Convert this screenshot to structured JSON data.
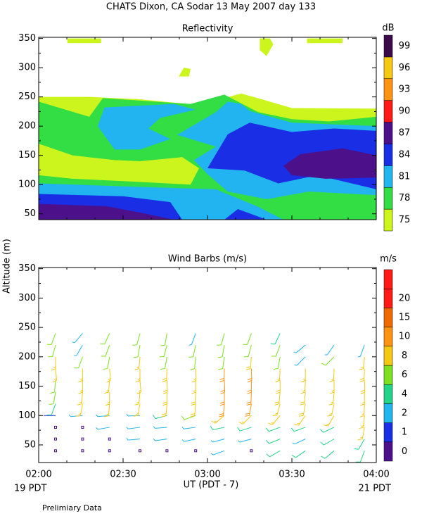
{
  "page_title": "CHATS Dixon, CA  Sodar  13 May 2007  day 133",
  "y_label": "Altitude (m)",
  "x_note_left": "19 PDT",
  "x_note_right": "21 PDT",
  "footer": "Prelimiary Data",
  "chart_data": [
    {
      "type": "contour",
      "title": "Reflectivity",
      "xlim": [
        2,
        4
      ],
      "ylim": [
        40,
        352
      ],
      "yticks": [
        50,
        100,
        150,
        200,
        250,
        300,
        350
      ],
      "colorbar_label": "dB",
      "levels": [
        75,
        78,
        81,
        84,
        87,
        90,
        93,
        96,
        99
      ],
      "colors": [
        "#ccf51e",
        "#33dd44",
        "#22b4f0",
        "#1a2ee6",
        "#4b108a",
        "#ff1a1a",
        "#ff9414",
        "#f5c814",
        "#3a0a4a"
      ],
      "regions": [
        {
          "level": 75,
          "points": [
            [
              2,
              40
            ],
            [
              2,
              250
            ],
            [
              2.3,
              250
            ],
            [
              2.6,
              246
            ],
            [
              2.95,
              236
            ],
            [
              3.2,
              256
            ],
            [
              3.5,
              231
            ],
            [
              4,
              230
            ],
            [
              4,
              40
            ]
          ]
        },
        {
          "level": 75,
          "points": [
            [
              2.17,
              342
            ],
            [
              2.37,
              342
            ],
            [
              2.37,
              350
            ],
            [
              2.17,
              350
            ]
          ]
        },
        {
          "level": 75,
          "points": [
            [
              2.83,
              285
            ],
            [
              2.86,
              300
            ],
            [
              2.9,
              298
            ],
            [
              2.89,
              285
            ]
          ]
        },
        {
          "level": 75,
          "points": [
            [
              3.31,
              330
            ],
            [
              3.35,
              320
            ],
            [
              3.39,
              340
            ],
            [
              3.37,
              350
            ],
            [
              3.31,
              350
            ]
          ]
        },
        {
          "level": 75,
          "points": [
            [
              3.59,
              342
            ],
            [
              3.8,
              342
            ],
            [
              3.8,
              350
            ],
            [
              3.59,
              350
            ]
          ]
        },
        {
          "level": 78,
          "points": [
            [
              2,
              40
            ],
            [
              2,
              242
            ],
            [
              2.3,
              216
            ],
            [
              2.38,
              248
            ],
            [
              2.9,
              238
            ],
            [
              3.1,
              254
            ],
            [
              3.3,
              224
            ],
            [
              3.5,
              212
            ],
            [
              3.72,
              208
            ],
            [
              4,
              216
            ],
            [
              4,
              40
            ]
          ]
        },
        {
          "level": 75,
          "points": [
            [
              2,
              170
            ],
            [
              2.2,
              150
            ],
            [
              2.45,
              142
            ],
            [
              2.6,
              140
            ],
            [
              2.85,
              147
            ],
            [
              2.95,
              128
            ],
            [
              2.9,
              100
            ],
            [
              2.5,
              106
            ],
            [
              2.2,
              110
            ],
            [
              2,
              116
            ]
          ]
        },
        {
          "level": 81,
          "points": [
            [
              2.35,
              200
            ],
            [
              2.39,
              232
            ],
            [
              2.8,
              238
            ],
            [
              2.93,
              228
            ],
            [
              2.72,
              214
            ],
            [
              2.65,
              196
            ],
            [
              2.78,
              178
            ],
            [
              2.6,
              160
            ],
            [
              2.45,
              160
            ]
          ]
        },
        {
          "level": 81,
          "points": [
            [
              2.82,
              185
            ],
            [
              3.05,
              224
            ],
            [
              3.12,
              242
            ],
            [
              3.2,
              238
            ],
            [
              3.25,
              226
            ],
            [
              3.5,
              206
            ],
            [
              4,
              200
            ],
            [
              4,
              82
            ],
            [
              3.6,
              88
            ],
            [
              3.35,
              75
            ],
            [
              3.12,
              88
            ],
            [
              3.0,
              118
            ],
            [
              2.92,
              142
            ],
            [
              3.05,
              165
            ]
          ]
        },
        {
          "level": 81,
          "points": [
            [
              2,
              102
            ],
            [
              2.6,
              96
            ],
            [
              3.05,
              92
            ],
            [
              3.3,
              62
            ],
            [
              3.45,
              40
            ],
            [
              2,
              40
            ]
          ]
        },
        {
          "level": 84,
          "points": [
            [
              3.0,
              128
            ],
            [
              3.12,
              186
            ],
            [
              3.25,
              206
            ],
            [
              3.5,
              190
            ],
            [
              3.75,
              196
            ],
            [
              4,
              192
            ],
            [
              4,
              92
            ],
            [
              3.65,
              116
            ],
            [
              3.42,
              102
            ],
            [
              3.22,
              124
            ]
          ]
        },
        {
          "level": 84,
          "points": [
            [
              2,
              84
            ],
            [
              2.5,
              80
            ],
            [
              2.78,
              70
            ],
            [
              2.85,
              40
            ],
            [
              2,
              40
            ]
          ]
        },
        {
          "level": 84,
          "points": [
            [
              3.1,
              40
            ],
            [
              3.18,
              58
            ],
            [
              3.35,
              40
            ]
          ]
        },
        {
          "level": 87,
          "points": [
            [
              3.45,
              132
            ],
            [
              3.55,
              152
            ],
            [
              3.8,
              162
            ],
            [
              4,
              150
            ],
            [
              4,
              112
            ],
            [
              3.7,
              110
            ],
            [
              3.5,
              116
            ]
          ]
        },
        {
          "level": 87,
          "points": [
            [
              2,
              67
            ],
            [
              2.4,
              63
            ],
            [
              2.6,
              52
            ],
            [
              2.8,
              40
            ],
            [
              2,
              40
            ]
          ]
        }
      ]
    },
    {
      "type": "barbs",
      "title": "Wind Barbs (m/s)",
      "xlim": [
        2,
        4
      ],
      "ylim": [
        20,
        352
      ],
      "xticks": [
        {
          "value": 2,
          "label": "02:00"
        },
        {
          "value": 2.5,
          "label": "02:30"
        },
        {
          "value": 3,
          "label": "03:00"
        },
        {
          "value": 3.5,
          "label": "03:30"
        },
        {
          "value": 4,
          "label": "04:00"
        }
      ],
      "yticks": [
        50,
        100,
        150,
        200,
        250,
        300,
        350
      ],
      "x_label": "UT  (PDT - 7)",
      "colorbar_label": "m/s",
      "levels": [
        0,
        1,
        2,
        4,
        6,
        8,
        10,
        15,
        20
      ],
      "colors": [
        "#4b108a",
        "#1a2ee6",
        "#22b4f0",
        "#22d488",
        "#7ee022",
        "#f5c814",
        "#ff9414",
        "#f06a00",
        "#ff1a1a"
      ],
      "altitudes": [
        40,
        60,
        80,
        100,
        120,
        140,
        160,
        180,
        200,
        220,
        240
      ],
      "series": [
        {
          "time": 2.1,
          "speeds": [
            0,
            0,
            0,
            1,
            4,
            6,
            6,
            8,
            8,
            6,
            6
          ],
          "directions": [
            0,
            0,
            0,
            270,
            200,
            190,
            185,
            175,
            180,
            195,
            200
          ]
        },
        {
          "time": 2.26,
          "speeds": [
            0,
            0,
            0,
            3,
            8,
            8,
            8,
            8,
            6,
            3,
            3
          ],
          "directions": [
            0,
            0,
            0,
            265,
            190,
            185,
            180,
            180,
            200,
            210,
            220
          ]
        },
        {
          "time": 2.42,
          "speeds": [
            0,
            0,
            2,
            3,
            8,
            8,
            8,
            8,
            6,
            6,
            6
          ],
          "directions": [
            0,
            0,
            260,
            265,
            185,
            180,
            185,
            175,
            190,
            200,
            205
          ]
        },
        {
          "time": 2.6,
          "speeds": [
            0,
            2,
            2,
            3,
            8,
            8,
            8,
            8,
            8,
            6,
            6
          ],
          "directions": [
            0,
            265,
            262,
            268,
            190,
            185,
            175,
            180,
            185,
            190,
            195
          ]
        },
        {
          "time": 2.76,
          "speeds": [
            0,
            2,
            3,
            5,
            9,
            9,
            9,
            9,
            6,
            6,
            6
          ],
          "directions": [
            0,
            262,
            265,
            255,
            185,
            180,
            178,
            182,
            190,
            195,
            190
          ]
        },
        {
          "time": 2.93,
          "speeds": [
            0,
            3,
            3,
            6,
            9,
            9,
            8,
            8,
            6,
            6,
            3
          ],
          "directions": [
            0,
            258,
            262,
            250,
            185,
            182,
            180,
            178,
            185,
            192,
            200
          ]
        },
        {
          "time": 3.1,
          "speeds": [
            3,
            3,
            5,
            8,
            10,
            10,
            10,
            10,
            6,
            6,
            6
          ],
          "directions": [
            250,
            255,
            258,
            230,
            185,
            180,
            178,
            182,
            188,
            190,
            195
          ]
        },
        {
          "time": 3.26,
          "speeds": [
            0,
            3,
            5,
            8,
            10,
            10,
            10,
            10,
            9,
            6,
            6
          ],
          "directions": [
            0,
            255,
            252,
            225,
            190,
            182,
            180,
            178,
            185,
            195,
            200
          ]
        },
        {
          "time": 3.43,
          "speeds": [
            5,
            5,
            5,
            8,
            8,
            9,
            9,
            8,
            6,
            6,
            5
          ],
          "directions": [
            240,
            248,
            250,
            220,
            195,
            185,
            180,
            182,
            190,
            200,
            205
          ]
        },
        {
          "time": 3.58,
          "speeds": [
            4,
            3,
            4,
            8,
            9,
            9,
            8,
            8,
            2,
            2,
            null
          ],
          "directions": [
            235,
            245,
            250,
            215,
            190,
            185,
            182,
            180,
            225,
            230,
            null
          ]
        },
        {
          "time": 3.75,
          "speeds": [
            4,
            5,
            5,
            8,
            8,
            8,
            8,
            8,
            6,
            2,
            null
          ],
          "directions": [
            230,
            240,
            245,
            210,
            192,
            185,
            180,
            182,
            225,
            215,
            null
          ]
        },
        {
          "time": 3.93,
          "speeds": [
            4,
            5,
            8,
            8,
            8,
            8,
            9,
            9,
            8,
            3,
            null
          ],
          "directions": [
            200,
            210,
            190,
            185,
            182,
            180,
            178,
            182,
            185,
            200,
            null
          ]
        }
      ]
    }
  ]
}
